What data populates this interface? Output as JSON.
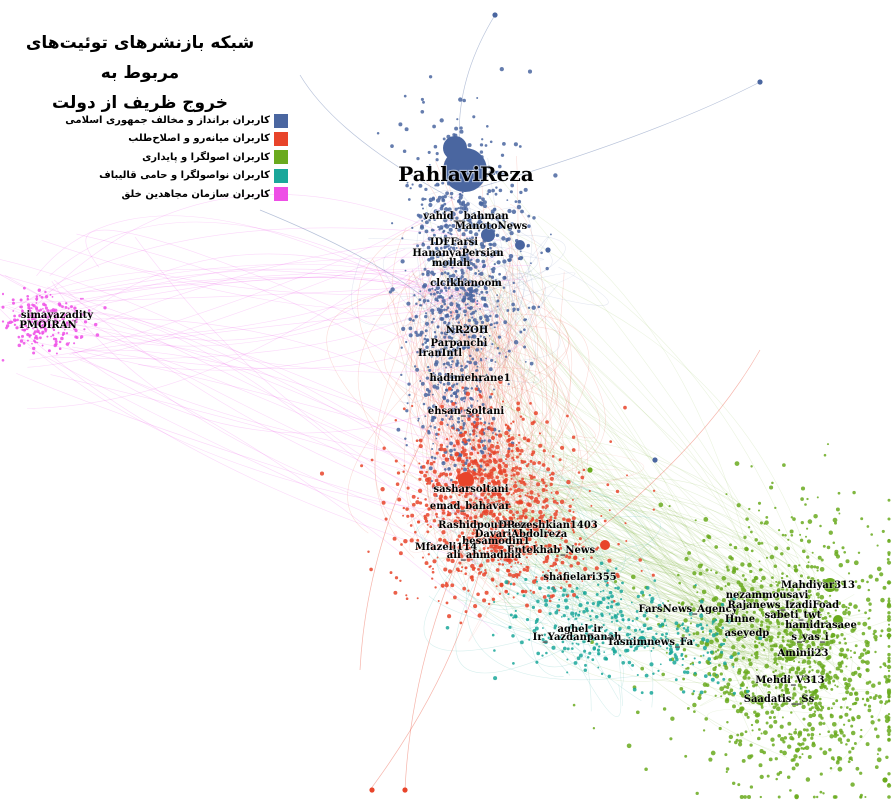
{
  "title": {
    "line1": "شبکه بازنشرهای توئیت‌های مربوط به",
    "line2": "خروج ظریف از دولت"
  },
  "legend": [
    {
      "label": "کاربران برانداز و مخالف جمهوری اسلامی",
      "color": "#4a66a0"
    },
    {
      "label": "کاربران میانه‌رو و اصلاح‌طلب",
      "color": "#e8442a"
    },
    {
      "label": "کاربران اصولگرا و پایداری",
      "color": "#6aaa1e"
    },
    {
      "label": "کاربران نواصولگرا و حامی قالیباف",
      "color": "#1aa79a"
    },
    {
      "label": "کاربران سازمان مجاهدین خلق",
      "color": "#ee4ee6"
    }
  ],
  "nodes": [
    {
      "label": "PahlaviReza",
      "group": 0,
      "size": "xl"
    },
    {
      "label": "vahid__bahman",
      "group": 0
    },
    {
      "label": "ManotoNews",
      "group": 0
    },
    {
      "label": "IDFFarsi",
      "group": 0
    },
    {
      "label": "HananyaPersian",
      "group": 0
    },
    {
      "label": "mollah",
      "group": 0
    },
    {
      "label": "clcikhanoom",
      "group": 0
    },
    {
      "label": "NR2OH",
      "group": 0
    },
    {
      "label": "Parpanchi",
      "group": 0
    },
    {
      "label": "IranIntl",
      "group": 0
    },
    {
      "label": "hadimehrane1",
      "group": 0
    },
    {
      "label": "ehsan_soltani",
      "group": 0
    },
    {
      "label": "sasharsoltani",
      "group": 1
    },
    {
      "label": "emad_bahavar",
      "group": 1
    },
    {
      "label": "RashidpourReza",
      "group": 1
    },
    {
      "label": "DPezeshkian1403",
      "group": 1
    },
    {
      "label": "DavariAbdolreza",
      "group": 1
    },
    {
      "label": "hesamodin1",
      "group": 1
    },
    {
      "label": "Mfazeli114",
      "group": 1
    },
    {
      "label": "Entekhab_News",
      "group": 1
    },
    {
      "label": "ali_ahmadnia",
      "group": 1
    },
    {
      "label": "shafielari355",
      "group": 1
    },
    {
      "label": "FarsNews_Agency",
      "group": 3
    },
    {
      "label": "aghel_ir",
      "group": 3
    },
    {
      "label": "Ir_Yazdanpanah",
      "group": 3
    },
    {
      "label": "Tasnimnews_Fa",
      "group": 3
    },
    {
      "label": "Mahdiyar313",
      "group": 2
    },
    {
      "label": "nezammousavi",
      "group": 2
    },
    {
      "label": "Rajanews_ir",
      "group": 2
    },
    {
      "label": "IzadiFoad",
      "group": 2
    },
    {
      "label": "sabeti_twt",
      "group": 2
    },
    {
      "label": "Hnne",
      "group": 2
    },
    {
      "label": "hamidrasaee",
      "group": 2
    },
    {
      "label": "aseyedp",
      "group": 2
    },
    {
      "label": "s_yas_i",
      "group": 2
    },
    {
      "label": "Aminii23",
      "group": 2
    },
    {
      "label": "Mehdi_V313",
      "group": 2
    },
    {
      "label": "Saadatis__Ss",
      "group": 2
    },
    {
      "label": "simayazadity",
      "group": 4
    },
    {
      "label": "PMOIRAN",
      "group": 4
    }
  ]
}
